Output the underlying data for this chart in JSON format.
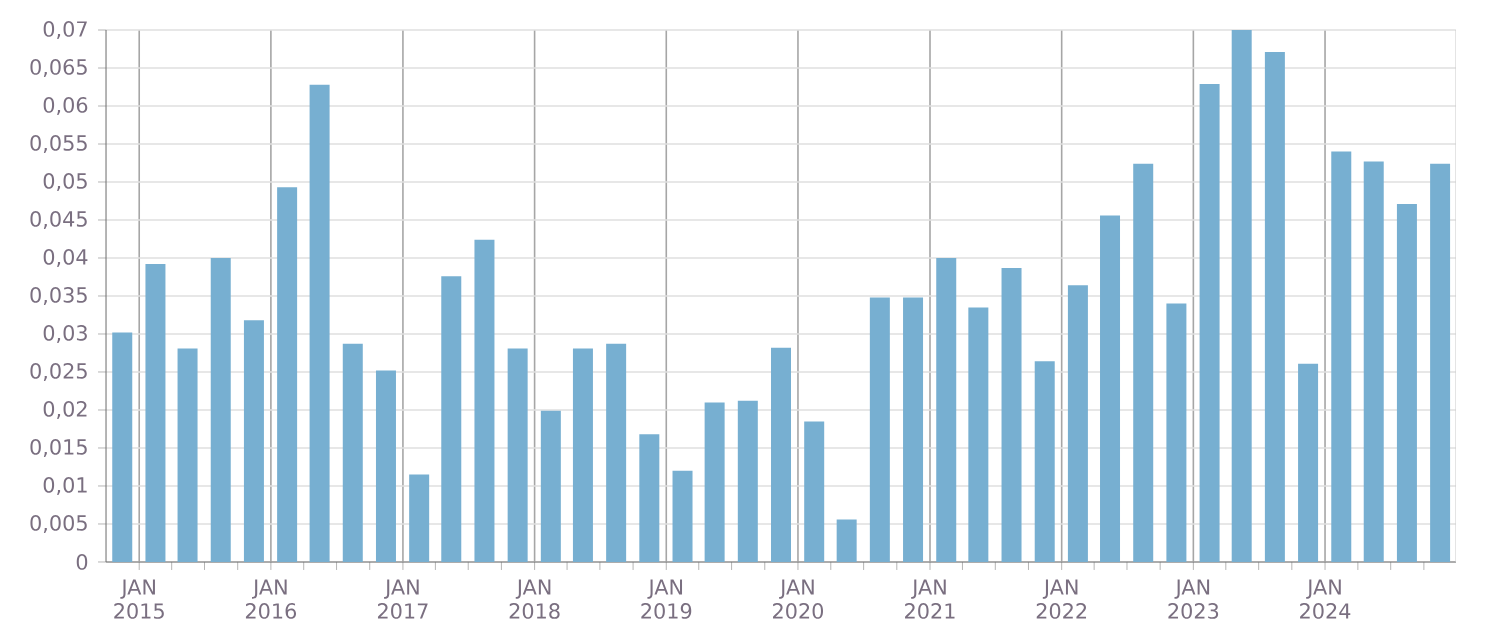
{
  "chart_data": {
    "type": "bar",
    "color": "#77afd1",
    "grid": true,
    "x": [
      "2014-11-15",
      "2015-02-15",
      "2015-05-15",
      "2015-08-15",
      "2015-11-15",
      "2016-02-15",
      "2016-05-15",
      "2016-08-15",
      "2016-11-15",
      "2017-02-15",
      "2017-05-15",
      "2017-08-15",
      "2017-11-15",
      "2018-02-15",
      "2018-05-15",
      "2018-08-15",
      "2018-11-15",
      "2019-02-15",
      "2019-05-15",
      "2019-08-15",
      "2019-11-15",
      "2020-02-15",
      "2020-05-15",
      "2020-08-15",
      "2020-11-15",
      "2021-02-15",
      "2021-05-15",
      "2021-08-15",
      "2021-11-15",
      "2022-02-15",
      "2022-05-15",
      "2022-08-15",
      "2022-11-15",
      "2023-02-15",
      "2023-05-15",
      "2023-08-15",
      "2023-11-15",
      "2024-02-15",
      "2024-05-15",
      "2024-08-15",
      "2024-11-15"
    ],
    "values": [
      0.0302,
      0.0392,
      0.0281,
      0.04,
      0.0318,
      0.0493,
      0.0628,
      0.0287,
      0.0252,
      0.0115,
      0.0376,
      0.0424,
      0.0281,
      0.0199,
      0.0281,
      0.0287,
      0.0168,
      0.012,
      0.021,
      0.0212,
      0.0282,
      0.0185,
      0.0056,
      0.0348,
      0.0348,
      0.04,
      0.0335,
      0.0387,
      0.0264,
      0.0364,
      0.0456,
      0.0524,
      0.034,
      0.0629,
      0.07,
      0.0671,
      0.0261,
      0.054,
      0.0527,
      0.0471,
      0.0524
    ],
    "xlim": [
      "2014-10-01",
      "2024-12-29"
    ],
    "xticks": [
      {
        "value": "2015-01-01",
        "label": "JAN 2015"
      },
      {
        "value": "2015-04-01",
        "label": null
      },
      {
        "value": "2015-07-01",
        "label": null
      },
      {
        "value": "2015-10-01",
        "label": null
      },
      {
        "value": "2016-01-01",
        "label": "JAN 2016"
      },
      {
        "value": "2016-04-01",
        "label": null
      },
      {
        "value": "2016-07-01",
        "label": null
      },
      {
        "value": "2016-10-01",
        "label": null
      },
      {
        "value": "2017-01-01",
        "label": "JAN 2017"
      },
      {
        "value": "2017-04-01",
        "label": null
      },
      {
        "value": "2017-07-01",
        "label": null
      },
      {
        "value": "2017-10-01",
        "label": null
      },
      {
        "value": "2018-01-01",
        "label": "JAN 2018"
      },
      {
        "value": "2018-04-01",
        "label": null
      },
      {
        "value": "2018-07-01",
        "label": null
      },
      {
        "value": "2018-10-01",
        "label": null
      },
      {
        "value": "2019-01-01",
        "label": "JAN 2019"
      },
      {
        "value": "2019-04-01",
        "label": null
      },
      {
        "value": "2019-07-01",
        "label": null
      },
      {
        "value": "2019-10-01",
        "label": null
      },
      {
        "value": "2020-01-01",
        "label": "JAN 2020"
      },
      {
        "value": "2020-04-01",
        "label": null
      },
      {
        "value": "2020-07-01",
        "label": null
      },
      {
        "value": "2020-10-01",
        "label": null
      },
      {
        "value": "2021-01-01",
        "label": "JAN 2021"
      },
      {
        "value": "2021-04-01",
        "label": null
      },
      {
        "value": "2021-07-01",
        "label": null
      },
      {
        "value": "2021-10-01",
        "label": null
      },
      {
        "value": "2022-01-01",
        "label": "JAN 2022"
      },
      {
        "value": "2022-04-01",
        "label": null
      },
      {
        "value": "2022-07-01",
        "label": null
      },
      {
        "value": "2022-10-01",
        "label": null
      },
      {
        "value": "2023-01-01",
        "label": "JAN 2023"
      },
      {
        "value": "2023-04-01",
        "label": null
      },
      {
        "value": "2023-07-01",
        "label": null
      },
      {
        "value": "2023-10-01",
        "label": null
      },
      {
        "value": "2024-01-01",
        "label": "JAN 2024"
      },
      {
        "value": "2024-04-01",
        "label": null
      },
      {
        "value": "2024-07-01",
        "label": null
      },
      {
        "value": "2024-10-01",
        "label": null
      }
    ],
    "ylim": [
      0,
      0.07
    ],
    "yticks": [
      0,
      {
        "value": 0.005,
        "label": "0,005"
      },
      {
        "value": 0.01,
        "label": "0,01"
      },
      {
        "value": 0.015,
        "label": "0,015"
      },
      {
        "value": 0.02,
        "label": "0,02"
      },
      {
        "value": 0.025,
        "label": "0,025"
      },
      {
        "value": 0.03,
        "label": "0,03"
      },
      {
        "value": 0.035,
        "label": "0,035"
      },
      {
        "value": 0.04,
        "label": "0,04"
      },
      {
        "value": 0.045,
        "label": "0,045"
      },
      {
        "value": 0.05,
        "label": "0,05"
      },
      {
        "value": 0.055,
        "label": "0,055"
      },
      {
        "value": 0.06,
        "label": "0,06"
      },
      {
        "value": 0.065,
        "label": "0,065"
      },
      {
        "value": 0.07,
        "label": "0,07"
      }
    ]
  }
}
